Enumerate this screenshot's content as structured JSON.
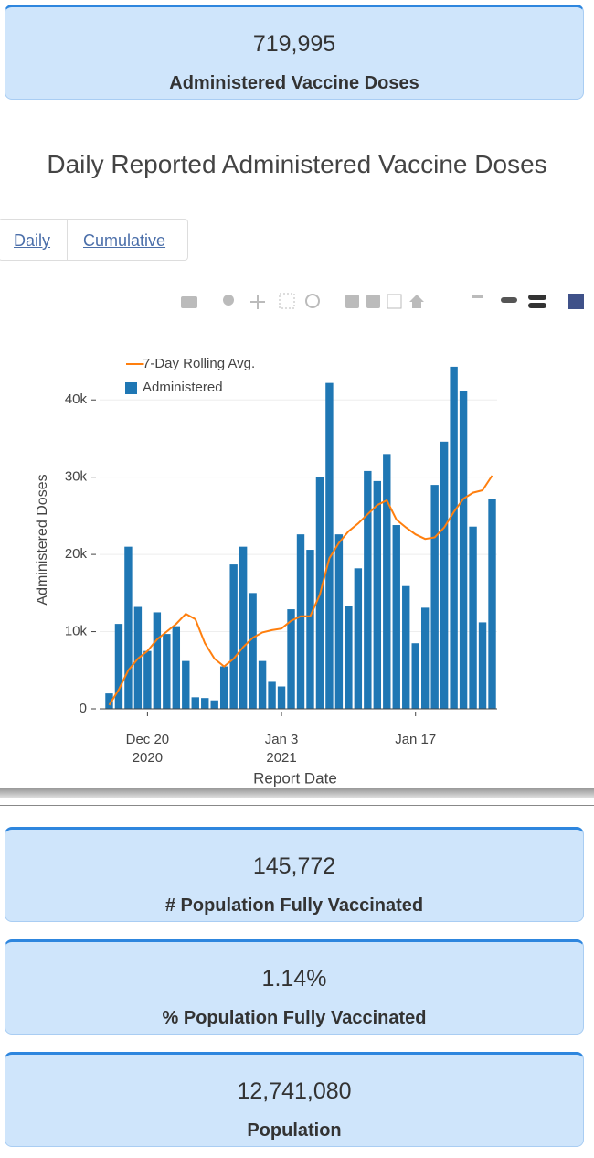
{
  "cards": [
    {
      "value": "719,995",
      "label": "Administered Vaccine Doses"
    },
    {
      "value": "145,772",
      "label": "# Population Fully Vaccinated"
    },
    {
      "value": "1.14%",
      "label": "% Population Fully Vaccinated"
    },
    {
      "value": "12,741,080",
      "label": "Population"
    }
  ],
  "section_title": "Daily Reported Administered Vaccine Doses",
  "tabs": [
    "Daily",
    "Cumulative"
  ],
  "chart_data": {
    "type": "bar",
    "x_label": "Report Date",
    "y_label": "Administered Doses",
    "x": [
      "2020-12-16",
      "2020-12-17",
      "2020-12-18",
      "2020-12-19",
      "2020-12-20",
      "2020-12-21",
      "2020-12-22",
      "2020-12-23",
      "2020-12-24",
      "2020-12-25",
      "2020-12-26",
      "2020-12-27",
      "2020-12-28",
      "2020-12-29",
      "2020-12-30",
      "2020-12-31",
      "2021-01-01",
      "2021-01-02",
      "2021-01-03",
      "2021-01-04",
      "2021-01-05",
      "2021-01-06",
      "2021-01-07",
      "2021-01-08",
      "2021-01-09",
      "2021-01-10",
      "2021-01-11",
      "2021-01-12",
      "2021-01-13",
      "2021-01-14",
      "2021-01-15",
      "2021-01-16",
      "2021-01-17",
      "2021-01-18",
      "2021-01-19",
      "2021-01-20",
      "2021-01-21",
      "2021-01-22",
      "2021-01-23",
      "2021-01-24",
      "2021-01-25"
    ],
    "series": [
      {
        "name": "7-Day Rolling Avg.",
        "type": "line",
        "color": "#ff7f0e",
        "values": [
          500,
          2500,
          5000,
          6500,
          7500,
          9000,
          10000,
          11000,
          12300,
          11600,
          8500,
          6500,
          5500,
          6500,
          8000,
          9200,
          9900,
          10200,
          10400,
          11400,
          12000,
          12000,
          14800,
          19500,
          21500,
          23000,
          24000,
          25200,
          26400,
          27000,
          24500,
          23500,
          22600,
          22000,
          22200,
          23500,
          25500,
          27200,
          28000,
          28300,
          30200
        ]
      },
      {
        "name": "Administered",
        "type": "bar",
        "color": "#1f77b4",
        "values": [
          2000,
          11000,
          21000,
          13200,
          7500,
          12500,
          9700,
          10700,
          6200,
          1500,
          1400,
          1100,
          5500,
          18700,
          21000,
          15000,
          6200,
          3500,
          2900,
          12900,
          22600,
          20600,
          30000,
          42200,
          22600,
          13300,
          18200,
          30800,
          29500,
          33000,
          23800,
          15900,
          8500,
          13100,
          29000,
          34600,
          44300,
          41200,
          23600,
          11200,
          27200
        ]
      }
    ],
    "xlim": [
      "2020-12-15",
      "2021-01-26"
    ],
    "xticks": [
      {
        "value": "2020-12-20",
        "label": "Dec 20",
        "year": "2020"
      },
      {
        "value": "2021-01-03",
        "label": "Jan 3",
        "year": "2021"
      },
      {
        "value": "2021-01-17",
        "label": "Jan 17"
      }
    ],
    "ylim": [
      0,
      45000
    ],
    "yticks": [
      0,
      {
        "value": 10000,
        "label": "10k"
      },
      {
        "value": 20000,
        "label": "20k"
      },
      {
        "value": 30000,
        "label": "30k"
      },
      {
        "value": 40000,
        "label": "40k"
      }
    ],
    "grid": true,
    "legend": "top-left"
  }
}
